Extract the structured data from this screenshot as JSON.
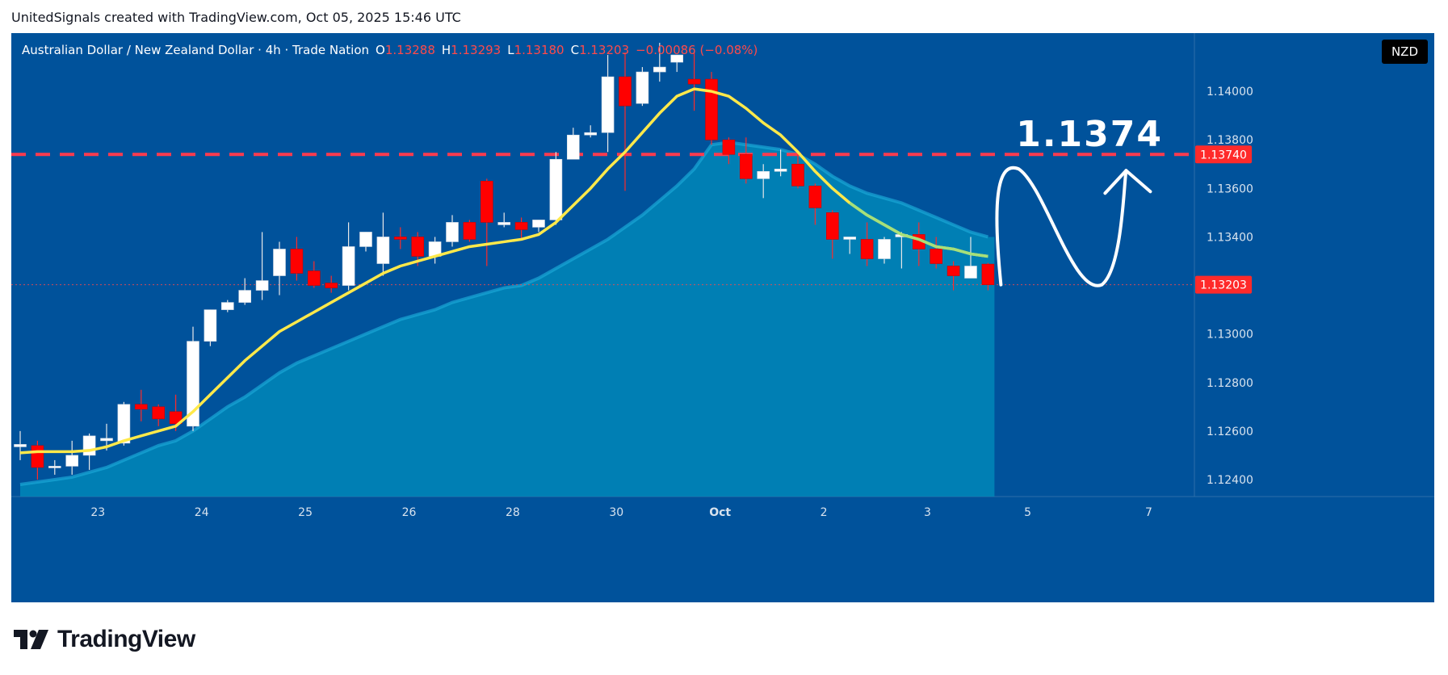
{
  "header": {
    "attribution": "UnitedSignals created with TradingView.com, Oct 05, 2025 15:46 UTC"
  },
  "legend": {
    "symbol": "Australian Dollar / New Zealand Dollar · 4h · Trade Nation",
    "open_key": "O",
    "open": "1.13288",
    "high_key": "H",
    "high": "1.13293",
    "low_key": "L",
    "low": "1.13180",
    "close_key": "C",
    "close": "1.13203",
    "change": "−0.00086 (−0.08%)"
  },
  "currency_badge": "NZD",
  "brand": {
    "name": "TradingView"
  },
  "colors": {
    "background": "#00529b",
    "area_fill": "#0087b8",
    "bull": "#ffffff",
    "bear": "#ff0000",
    "ema": "#ffe94a",
    "ema_green": "#a6e07a",
    "target_line": "#ff3b4e"
  },
  "chart_data": {
    "type": "candlestick",
    "timeframe": "4h",
    "x_tick_labels": [
      "23",
      "24",
      "25",
      "26",
      "28",
      "30",
      "Oct",
      "2",
      "3",
      "5",
      "7"
    ],
    "y_tick_labels": [
      "1.14000",
      "1.13800",
      "1.13600",
      "1.13400",
      "1.13000",
      "1.12800",
      "1.12600",
      "1.12400"
    ],
    "ylim": [
      1.1233,
      1.1424
    ],
    "candles": [
      [
        1.12535,
        1.126,
        1.1248,
        1.12545
      ],
      [
        1.1254,
        1.1256,
        1.124,
        1.1245
      ],
      [
        1.1245,
        1.1248,
        1.1242,
        1.12455
      ],
      [
        1.12455,
        1.1256,
        1.1242,
        1.125
      ],
      [
        1.125,
        1.1259,
        1.1244,
        1.1258
      ],
      [
        1.1256,
        1.1263,
        1.1252,
        1.1257
      ],
      [
        1.1255,
        1.1272,
        1.1254,
        1.1271
      ],
      [
        1.1271,
        1.1277,
        1.1264,
        1.1269
      ],
      [
        1.127,
        1.1271,
        1.1262,
        1.1265
      ],
      [
        1.1268,
        1.1275,
        1.126,
        1.1263
      ],
      [
        1.1262,
        1.1303,
        1.126,
        1.1297
      ],
      [
        1.1297,
        1.131,
        1.1295,
        1.131
      ],
      [
        1.131,
        1.1314,
        1.1309,
        1.1313
      ],
      [
        1.1313,
        1.1323,
        1.1312,
        1.1318
      ],
      [
        1.1318,
        1.1342,
        1.1314,
        1.1322
      ],
      [
        1.1324,
        1.1338,
        1.1316,
        1.1335
      ],
      [
        1.1335,
        1.134,
        1.1322,
        1.1325
      ],
      [
        1.1326,
        1.133,
        1.1319,
        1.132
      ],
      [
        1.1321,
        1.1324,
        1.1317,
        1.1319
      ],
      [
        1.132,
        1.1346,
        1.1318,
        1.1336
      ],
      [
        1.1336,
        1.1342,
        1.1334,
        1.1342
      ],
      [
        1.1329,
        1.135,
        1.1324,
        1.134
      ],
      [
        1.134,
        1.1344,
        1.1335,
        1.1339
      ],
      [
        1.134,
        1.1342,
        1.1328,
        1.1332
      ],
      [
        1.1332,
        1.134,
        1.1329,
        1.1338
      ],
      [
        1.1338,
        1.1349,
        1.1336,
        1.1346
      ],
      [
        1.1346,
        1.1347,
        1.1338,
        1.1339
      ],
      [
        1.1363,
        1.1364,
        1.1328,
        1.1346
      ],
      [
        1.1345,
        1.135,
        1.1344,
        1.1346
      ],
      [
        1.1346,
        1.1348,
        1.1339,
        1.1343
      ],
      [
        1.1344,
        1.1347,
        1.1342,
        1.1347
      ],
      [
        1.1347,
        1.1375,
        1.1345,
        1.1372
      ],
      [
        1.1372,
        1.1385,
        1.1372,
        1.1382
      ],
      [
        1.1382,
        1.1386,
        1.1381,
        1.1383
      ],
      [
        1.1383,
        1.1415,
        1.1375,
        1.1406
      ],
      [
        1.1406,
        1.1416,
        1.1359,
        1.1394
      ],
      [
        1.1395,
        1.141,
        1.1394,
        1.1408
      ],
      [
        1.1408,
        1.142,
        1.1404,
        1.141
      ],
      [
        1.1412,
        1.1415,
        1.1408,
        1.1415
      ],
      [
        1.1405,
        1.1416,
        1.1392,
        1.1403
      ],
      [
        1.1405,
        1.1408,
        1.1378,
        1.138
      ],
      [
        1.138,
        1.1381,
        1.137,
        1.1374
      ],
      [
        1.1374,
        1.1381,
        1.1362,
        1.1364
      ],
      [
        1.1364,
        1.137,
        1.1356,
        1.1367
      ],
      [
        1.1367,
        1.1376,
        1.1365,
        1.1368
      ],
      [
        1.137,
        1.1374,
        1.136,
        1.1361
      ],
      [
        1.1361,
        1.1362,
        1.1345,
        1.1352
      ],
      [
        1.135,
        1.1351,
        1.1331,
        1.1339
      ],
      [
        1.1339,
        1.134,
        1.1333,
        1.134
      ],
      [
        1.1339,
        1.1346,
        1.1328,
        1.1331
      ],
      [
        1.1331,
        1.134,
        1.1329,
        1.1339
      ],
      [
        1.134,
        1.1342,
        1.1327,
        1.1341
      ],
      [
        1.1341,
        1.1346,
        1.1328,
        1.1335
      ],
      [
        1.1335,
        1.134,
        1.1327,
        1.1329
      ],
      [
        1.1328,
        1.133,
        1.1318,
        1.1324
      ],
      [
        1.1323,
        1.134,
        1.1323,
        1.1328
      ],
      [
        1.13288,
        1.13293,
        1.1318,
        1.13203
      ]
    ],
    "ema_values": [
      1.1251,
      1.12515,
      1.12515,
      1.12515,
      1.1252,
      1.12535,
      1.1256,
      1.1258,
      1.126,
      1.1262,
      1.1268,
      1.1275,
      1.1282,
      1.1289,
      1.1295,
      1.1301,
      1.1305,
      1.1309,
      1.1313,
      1.1317,
      1.1321,
      1.1325,
      1.1328,
      1.133,
      1.1332,
      1.1334,
      1.1336,
      1.1337,
      1.1338,
      1.1339,
      1.1341,
      1.1346,
      1.1353,
      1.136,
      1.1368,
      1.1375,
      1.1383,
      1.1391,
      1.1398,
      1.1401,
      1.14,
      1.1398,
      1.1393,
      1.1387,
      1.1382,
      1.1375,
      1.1367,
      1.136,
      1.1354,
      1.1349,
      1.1345,
      1.1341,
      1.1339,
      1.1336,
      1.1335,
      1.1333,
      1.1332
    ],
    "area_values": [
      1.1238,
      1.1239,
      1.124,
      1.1241,
      1.1243,
      1.1245,
      1.1248,
      1.1251,
      1.1254,
      1.1256,
      1.126,
      1.1265,
      1.127,
      1.1274,
      1.1279,
      1.1284,
      1.1288,
      1.1291,
      1.1294,
      1.1297,
      1.13,
      1.1303,
      1.1306,
      1.1308,
      1.131,
      1.1313,
      1.1315,
      1.1317,
      1.1319,
      1.132,
      1.1323,
      1.1327,
      1.1331,
      1.1335,
      1.1339,
      1.1344,
      1.1349,
      1.1355,
      1.1361,
      1.1368,
      1.1378,
      1.1379,
      1.1378,
      1.1377,
      1.1376,
      1.1374,
      1.137,
      1.1365,
      1.1361,
      1.1358,
      1.1356,
      1.1354,
      1.1351,
      1.1348,
      1.1345,
      1.1342,
      1.134
    ],
    "target_level": 1.1374,
    "target_label": "1.1374",
    "target_badge": "1.13740",
    "last_price_badge": "1.13203",
    "annotations": [
      "projected path: rise to 1.1374, dip back, then rise again (hand-drawn arrow)"
    ]
  }
}
